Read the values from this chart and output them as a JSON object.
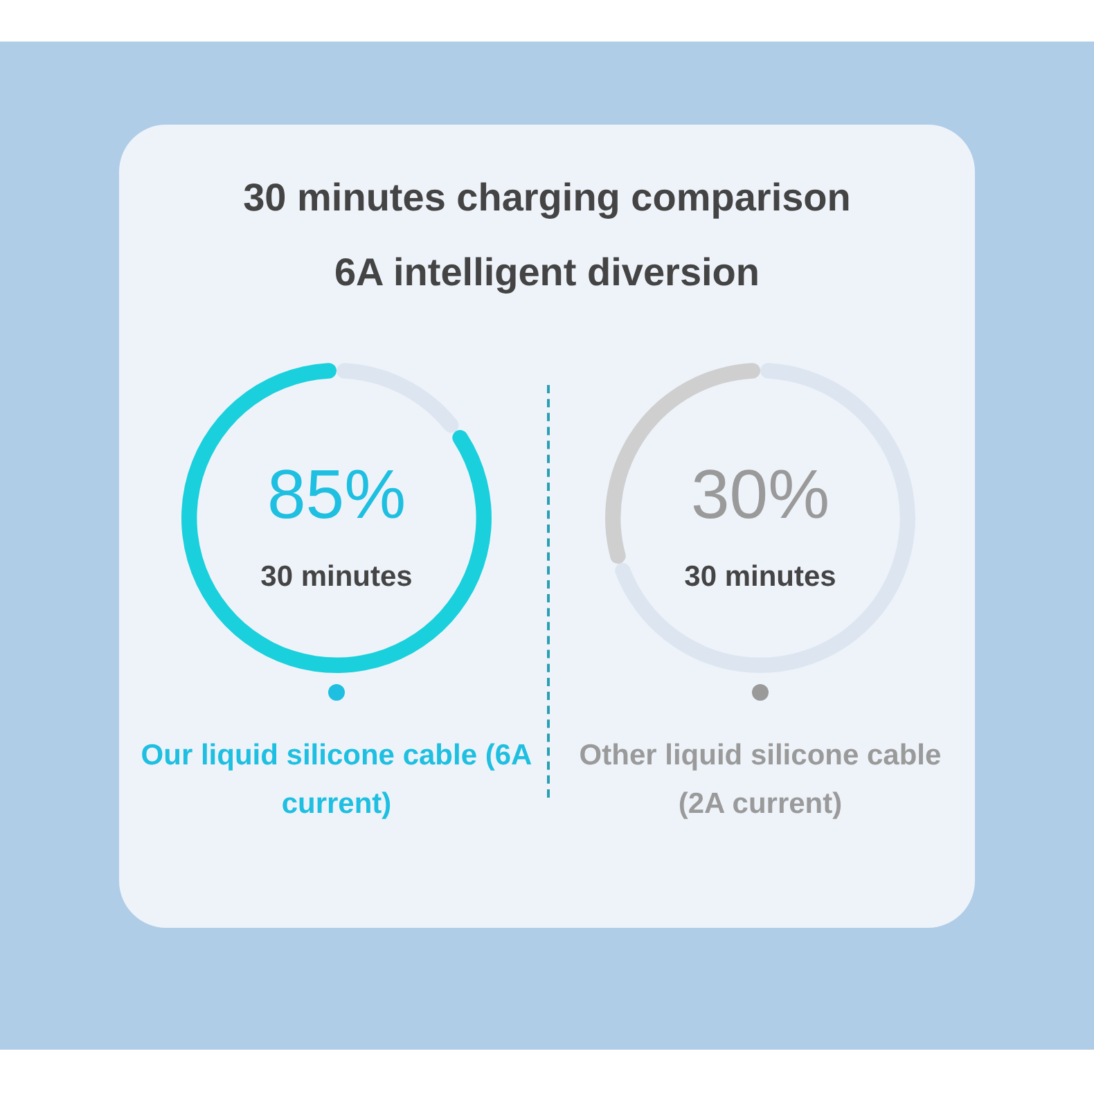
{
  "chart_data": [
    {
      "type": "donut",
      "title": "30 minutes charging comparison",
      "subtitle": "6A intelligent diversion",
      "categories": [
        null,
        null
      ],
      "values": [
        15,
        85
      ],
      "colors": [
        "#dde6f0",
        "#1ad0dc"
      ],
      "value_labels": [
        null,
        "85%"
      ],
      "annotations": [
        "30 minutes"
      ],
      "xlabel": "Our liquid silicone cable (6A current)",
      "legend": false
    },
    {
      "type": "donut",
      "categories": [
        null,
        null
      ],
      "values": [
        70,
        30
      ],
      "colors": [
        "#dde6f0",
        "#cfcfcf"
      ],
      "value_labels": [
        null,
        "30%"
      ],
      "annotations": [
        "30 minutes"
      ],
      "xlabel": "Other liquid silicone cable (2A current)",
      "legend": false
    }
  ]
}
